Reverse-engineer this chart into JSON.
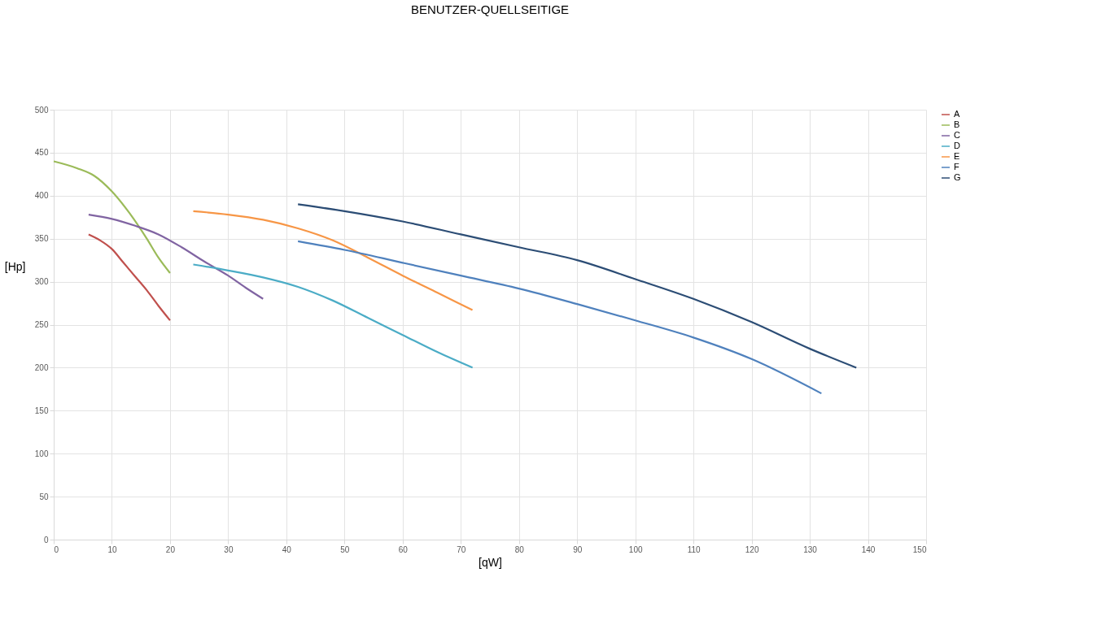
{
  "chart_data": {
    "type": "line",
    "title": "BENUTZER-QUELLSEITIGE",
    "xlabel": "[qW]",
    "ylabel": "[Hp]",
    "xlim": [
      0,
      150
    ],
    "xticks": [
      0,
      10,
      20,
      30,
      40,
      50,
      60,
      70,
      80,
      90,
      100,
      110,
      120,
      130,
      140,
      150
    ],
    "ylim": [
      0,
      500
    ],
    "yticks": [
      0,
      50,
      100,
      150,
      200,
      250,
      300,
      350,
      400,
      450,
      500
    ],
    "grid": true,
    "legend": "right",
    "line_style": "solid",
    "marker": "none",
    "series": [
      {
        "name": "A",
        "color": "#c0504d",
        "x": [
          6,
          8,
          10,
          12,
          14,
          16,
          18,
          20
        ],
        "values": [
          355,
          348,
          338,
          322,
          306,
          290,
          272,
          255
        ]
      },
      {
        "name": "B",
        "color": "#9bbb59",
        "x": [
          0,
          4,
          7,
          10,
          13,
          16,
          18,
          20
        ],
        "values": [
          440,
          432,
          423,
          405,
          380,
          350,
          328,
          310
        ]
      },
      {
        "name": "C",
        "color": "#8064a2",
        "x": [
          6,
          10,
          14,
          18,
          22,
          26,
          30,
          33,
          36
        ],
        "values": [
          378,
          373,
          365,
          355,
          340,
          323,
          307,
          293,
          280
        ]
      },
      {
        "name": "D",
        "color": "#4bacc6",
        "x": [
          24,
          30,
          36,
          42,
          48,
          54,
          60,
          66,
          72
        ],
        "values": [
          320,
          313,
          305,
          294,
          278,
          258,
          238,
          218,
          200
        ]
      },
      {
        "name": "E",
        "color": "#f79646",
        "x": [
          24,
          30,
          36,
          42,
          48,
          54,
          60,
          66,
          72
        ],
        "values": [
          382,
          378,
          372,
          362,
          348,
          328,
          307,
          287,
          267
        ]
      },
      {
        "name": "F",
        "color": "#4f81bd",
        "x": [
          42,
          50,
          60,
          70,
          80,
          90,
          100,
          110,
          120,
          132
        ],
        "values": [
          347,
          337,
          322,
          307,
          292,
          274,
          255,
          235,
          210,
          170
        ]
      },
      {
        "name": "G",
        "color": "#2c4d75",
        "x": [
          42,
          50,
          60,
          70,
          80,
          90,
          100,
          110,
          120,
          130,
          138
        ],
        "values": [
          390,
          382,
          370,
          355,
          340,
          325,
          303,
          280,
          253,
          222,
          200
        ]
      }
    ]
  }
}
